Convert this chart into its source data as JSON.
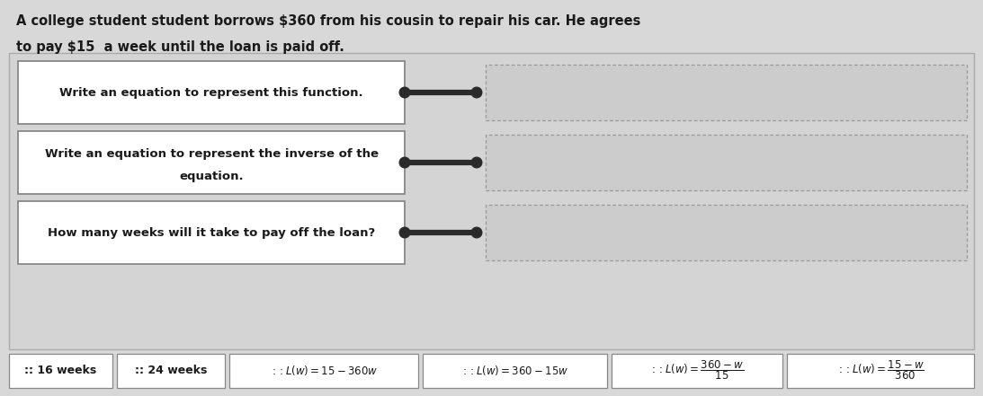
{
  "title_line1": "A college student student borrows $360 from his cousin to repair his car. He agrees",
  "title_line2": "to pay $15  a week until the loan is paid off.",
  "bg_color": "#d8d8d8",
  "question_boxes": [
    "Write an equation to represent this function.",
    "Write an equation to represent the inverse of the\nequation.",
    "How many weeks will it take to pay off the loan?"
  ],
  "connector_color": "#2a2a2a",
  "q_box_facecolor": "#ffffff",
  "q_box_edgecolor": "#888888",
  "outer_box_facecolor": "#d0d0d0",
  "outer_box_edgecolor": "#aaaaaa",
  "ans_box_facecolor": "#d8d8d8",
  "ans_box_edgecolor": "#888888",
  "chip_facecolor": "#ffffff",
  "chip_edgecolor": "#888888",
  "text_color": "#1a1a1a",
  "chip_labels": [
    ":: 16 weeks",
    ":: 24 weeks"
  ],
  "chip_math": [
    ":: $L(w) = 15 - 360w$",
    ":: $L(w) = 360 - 15w$",
    ":: $L(w) = \\dfrac{360-w}{15}$",
    ":: $L(w) = \\dfrac{15-w}{360}$"
  ]
}
